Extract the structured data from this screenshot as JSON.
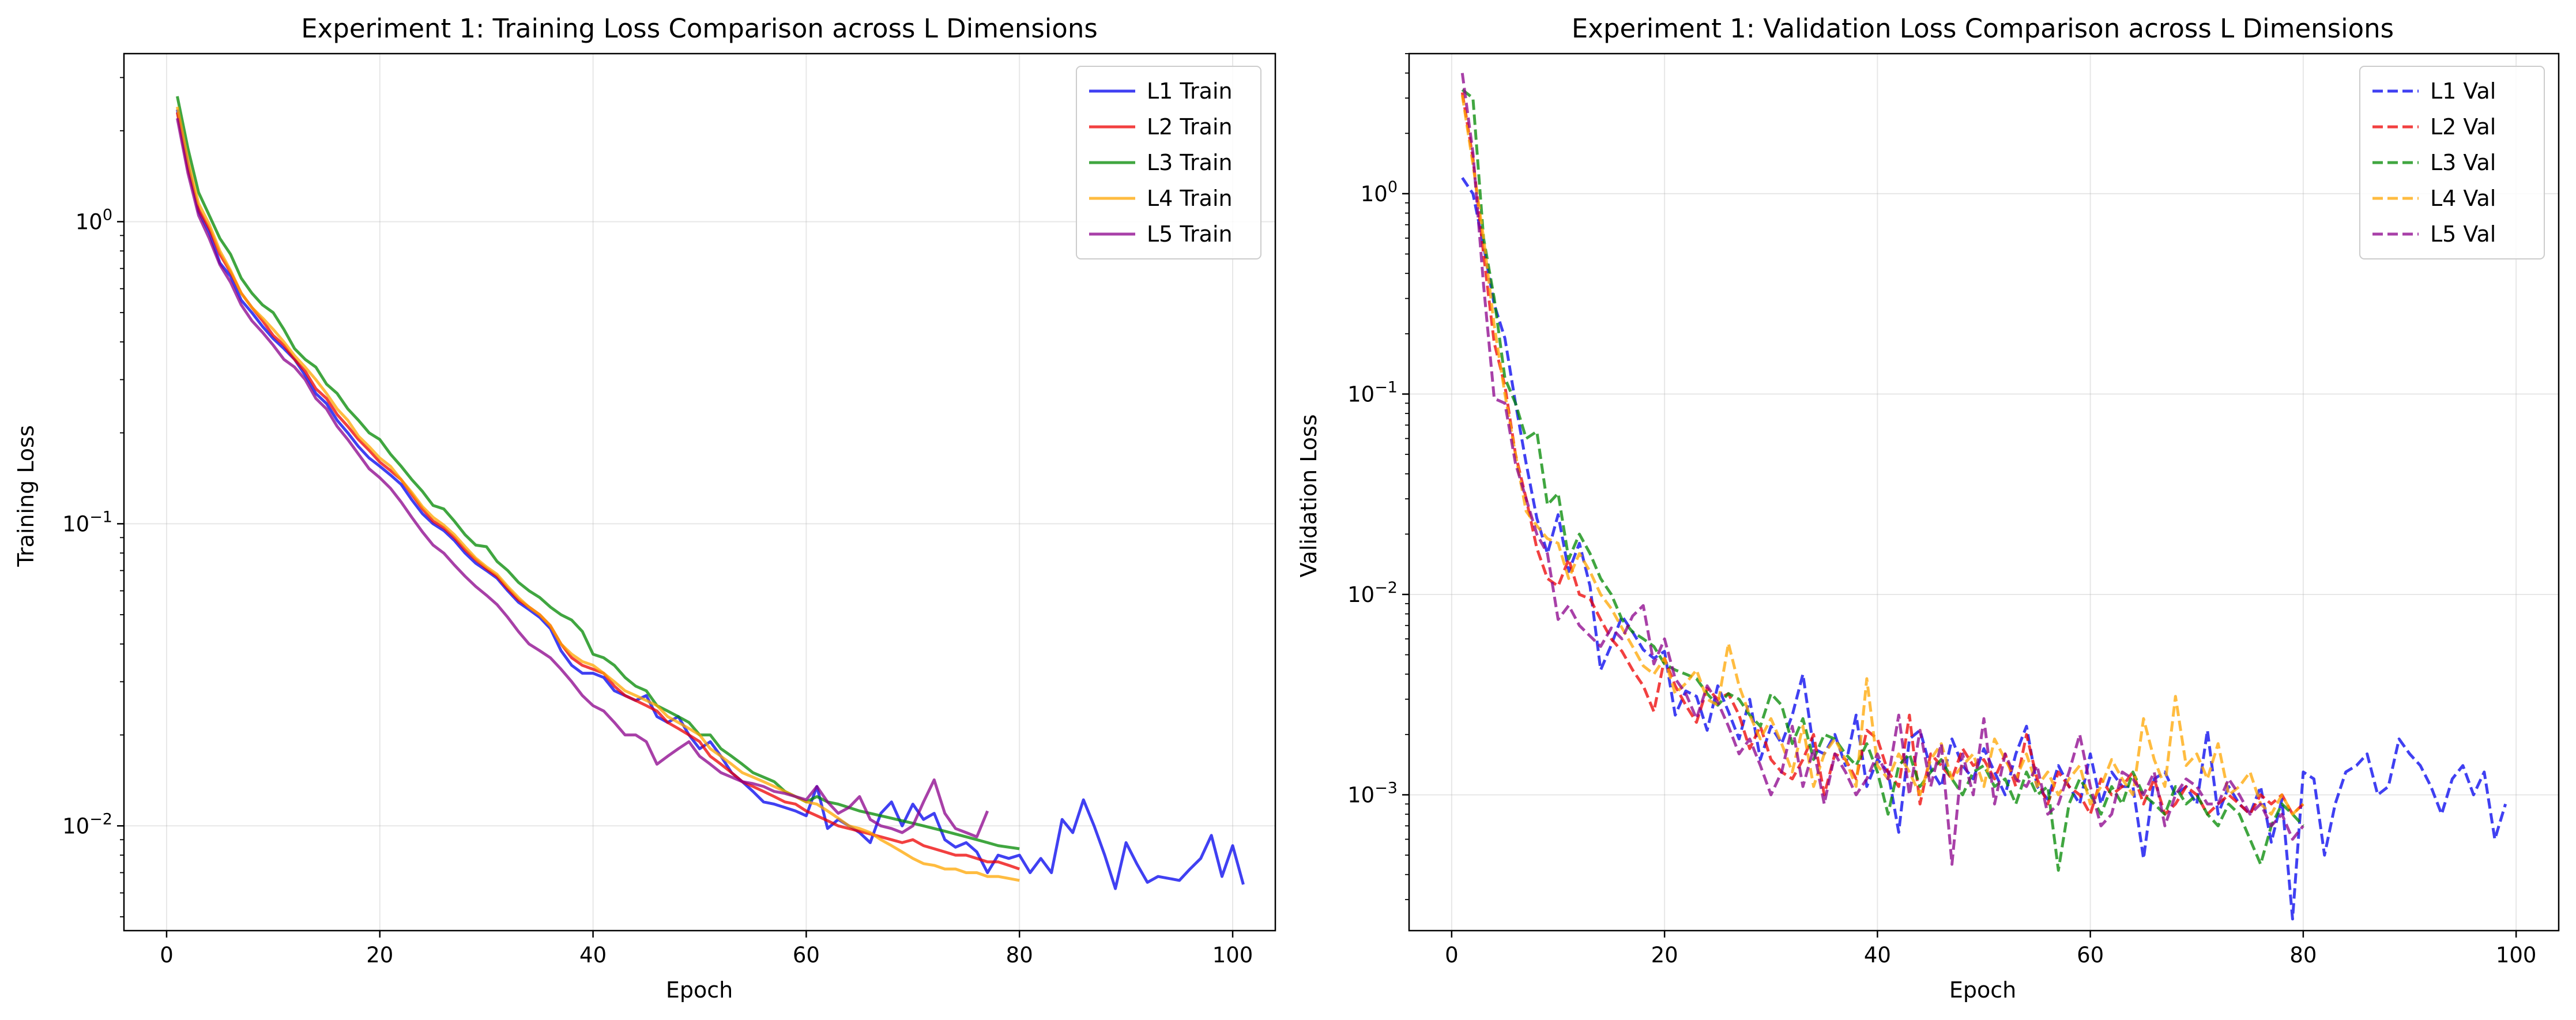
{
  "chart_data": [
    {
      "type": "line",
      "title": "Experiment 1: Training Loss Comparison across L Dimensions",
      "xlabel": "Epoch",
      "ylabel": "Training Loss",
      "y_scale": "log",
      "xlim": [
        -4,
        104
      ],
      "ylim": [
        0.0045,
        3.6
      ],
      "x_ticks": [
        0,
        20,
        40,
        60,
        80,
        100
      ],
      "y_tick_labels": [
        {
          "value": 1,
          "base": "10",
          "exp": "0"
        },
        {
          "value": 0.1,
          "base": "10",
          "exp": "−1"
        },
        {
          "value": 0.01,
          "base": "10",
          "exp": "−2"
        }
      ],
      "grid": true,
      "legend_position": "top-right",
      "line_style": "solid",
      "series": [
        {
          "name": "L1 Train",
          "color": "#0000ee",
          "x_start": 1,
          "values": [
            2.35,
            1.55,
            1.08,
            0.92,
            0.73,
            0.66,
            0.55,
            0.5,
            0.45,
            0.41,
            0.38,
            0.35,
            0.31,
            0.27,
            0.25,
            0.22,
            0.2,
            0.18,
            0.165,
            0.155,
            0.145,
            0.135,
            0.12,
            0.108,
            0.1,
            0.095,
            0.088,
            0.08,
            0.074,
            0.07,
            0.066,
            0.06,
            0.055,
            0.052,
            0.049,
            0.045,
            0.038,
            0.034,
            0.032,
            0.032,
            0.031,
            0.028,
            0.027,
            0.026,
            0.027,
            0.023,
            0.022,
            0.023,
            0.02,
            0.018,
            0.019,
            0.017,
            0.015,
            0.014,
            0.013,
            0.012,
            0.0118,
            0.0115,
            0.0112,
            0.0108,
            0.0135,
            0.0098,
            0.0105,
            0.01,
            0.0095,
            0.0088,
            0.011,
            0.012,
            0.01,
            0.0118,
            0.0105,
            0.011,
            0.009,
            0.0085,
            0.0088,
            0.0082,
            0.007,
            0.008,
            0.0078,
            0.008,
            0.007,
            0.0078,
            0.007,
            0.0105,
            0.0095,
            0.0122,
            0.01,
            0.008,
            0.0062,
            0.0088,
            0.0075,
            0.0065,
            0.0068,
            0.0067,
            0.0066,
            0.0072,
            0.0078,
            0.0093,
            0.0068,
            0.0086,
            0.0064
          ]
        },
        {
          "name": "L2 Train",
          "color": "#ee0000",
          "x_start": 1,
          "values": [
            2.3,
            1.5,
            1.1,
            0.95,
            0.78,
            0.68,
            0.58,
            0.52,
            0.47,
            0.42,
            0.39,
            0.35,
            0.32,
            0.28,
            0.26,
            0.23,
            0.21,
            0.19,
            0.175,
            0.16,
            0.15,
            0.14,
            0.125,
            0.112,
            0.102,
            0.097,
            0.09,
            0.082,
            0.076,
            0.071,
            0.067,
            0.061,
            0.056,
            0.053,
            0.05,
            0.046,
            0.04,
            0.036,
            0.034,
            0.033,
            0.032,
            0.029,
            0.027,
            0.026,
            0.025,
            0.024,
            0.022,
            0.021,
            0.02,
            0.019,
            0.017,
            0.016,
            0.015,
            0.014,
            0.0135,
            0.013,
            0.0125,
            0.012,
            0.0118,
            0.0112,
            0.0108,
            0.0104,
            0.01,
            0.0098,
            0.0096,
            0.0094,
            0.0092,
            0.009,
            0.0088,
            0.009,
            0.0086,
            0.0084,
            0.0082,
            0.008,
            0.008,
            0.0078,
            0.0076,
            0.0076,
            0.0074,
            0.0072
          ]
        },
        {
          "name": "L3 Train",
          "color": "#008800",
          "x_start": 1,
          "values": [
            2.6,
            1.75,
            1.25,
            1.05,
            0.88,
            0.78,
            0.65,
            0.58,
            0.53,
            0.5,
            0.44,
            0.38,
            0.35,
            0.33,
            0.29,
            0.27,
            0.24,
            0.22,
            0.2,
            0.19,
            0.17,
            0.155,
            0.14,
            0.128,
            0.115,
            0.112,
            0.102,
            0.092,
            0.085,
            0.084,
            0.075,
            0.07,
            0.064,
            0.06,
            0.057,
            0.053,
            0.05,
            0.048,
            0.044,
            0.037,
            0.036,
            0.034,
            0.031,
            0.029,
            0.028,
            0.025,
            0.024,
            0.023,
            0.022,
            0.02,
            0.02,
            0.018,
            0.017,
            0.016,
            0.015,
            0.0145,
            0.014,
            0.013,
            0.0125,
            0.012,
            0.0125,
            0.012,
            0.0118,
            0.0115,
            0.0112,
            0.011,
            0.0108,
            0.0106,
            0.0104,
            0.0102,
            0.01,
            0.0098,
            0.0096,
            0.0094,
            0.0092,
            0.009,
            0.0088,
            0.0086,
            0.0085,
            0.0084
          ]
        },
        {
          "name": "L4 Train",
          "color": "#ffa500",
          "x_start": 1,
          "values": [
            2.4,
            1.6,
            1.15,
            0.98,
            0.8,
            0.69,
            0.58,
            0.52,
            0.48,
            0.44,
            0.4,
            0.36,
            0.33,
            0.3,
            0.27,
            0.24,
            0.22,
            0.195,
            0.18,
            0.165,
            0.155,
            0.14,
            0.127,
            0.114,
            0.105,
            0.099,
            0.092,
            0.084,
            0.077,
            0.072,
            0.068,
            0.062,
            0.057,
            0.053,
            0.05,
            0.046,
            0.04,
            0.037,
            0.035,
            0.034,
            0.032,
            0.03,
            0.028,
            0.027,
            0.026,
            0.025,
            0.023,
            0.022,
            0.021,
            0.02,
            0.018,
            0.017,
            0.016,
            0.015,
            0.0145,
            0.014,
            0.0135,
            0.013,
            0.0125,
            0.012,
            0.0118,
            0.0112,
            0.0106,
            0.01,
            0.0098,
            0.0095,
            0.009,
            0.0086,
            0.0082,
            0.0078,
            0.0075,
            0.0074,
            0.0072,
            0.0072,
            0.007,
            0.007,
            0.0068,
            0.0068,
            0.0067,
            0.0066
          ]
        },
        {
          "name": "L5 Train",
          "color": "#8b008b",
          "x_start": 1,
          "values": [
            2.2,
            1.45,
            1.05,
            0.88,
            0.72,
            0.63,
            0.53,
            0.47,
            0.43,
            0.39,
            0.35,
            0.33,
            0.3,
            0.26,
            0.24,
            0.21,
            0.19,
            0.17,
            0.152,
            0.142,
            0.131,
            0.118,
            0.105,
            0.094,
            0.085,
            0.08,
            0.073,
            0.067,
            0.062,
            0.058,
            0.054,
            0.049,
            0.044,
            0.04,
            0.038,
            0.036,
            0.033,
            0.03,
            0.027,
            0.025,
            0.024,
            0.022,
            0.02,
            0.02,
            0.019,
            0.016,
            0.017,
            0.018,
            0.019,
            0.017,
            0.016,
            0.015,
            0.0145,
            0.014,
            0.0138,
            0.0135,
            0.013,
            0.0128,
            0.0125,
            0.0122,
            0.0135,
            0.012,
            0.011,
            0.0115,
            0.0125,
            0.0105,
            0.01,
            0.0098,
            0.0095,
            0.01,
            0.012,
            0.0142,
            0.011,
            0.0098,
            0.0095,
            0.0092,
            0.0112
          ]
        }
      ]
    },
    {
      "type": "line",
      "title": "Experiment 1: Validation Loss Comparison across L Dimensions",
      "xlabel": "Epoch",
      "ylabel": "Validation Loss",
      "y_scale": "log",
      "xlim": [
        -4,
        104
      ],
      "ylim": [
        0.00021,
        5.0
      ],
      "x_ticks": [
        0,
        20,
        40,
        60,
        80,
        100
      ],
      "y_tick_labels": [
        {
          "value": 1,
          "base": "10",
          "exp": "0"
        },
        {
          "value": 0.1,
          "base": "10",
          "exp": "−1"
        },
        {
          "value": 0.01,
          "base": "10",
          "exp": "−2"
        },
        {
          "value": 0.001,
          "base": "10",
          "exp": "−3"
        }
      ],
      "grid": true,
      "legend_position": "top-right",
      "line_style": "dashed",
      "series": [
        {
          "name": "L1 Val",
          "color": "#0000ee",
          "x_start": 1,
          "values": [
            1.2,
            1.0,
            0.55,
            0.28,
            0.19,
            0.09,
            0.045,
            0.024,
            0.016,
            0.025,
            0.013,
            0.018,
            0.011,
            0.0042,
            0.0056,
            0.0078,
            0.0065,
            0.0053,
            0.0048,
            0.0052,
            0.0025,
            0.0033,
            0.0031,
            0.0021,
            0.0035,
            0.0026,
            0.0019,
            0.003,
            0.0015,
            0.0022,
            0.0018,
            0.0025,
            0.004,
            0.0017,
            0.0016,
            0.002,
            0.0014,
            0.0025,
            0.0011,
            0.0015,
            0.0013,
            0.00065,
            0.0019,
            0.0021,
            0.00135,
            0.0011,
            0.0019,
            0.0014,
            0.0012,
            0.0017,
            0.0013,
            0.001,
            0.0016,
            0.0022,
            0.0011,
            0.00095,
            0.0014,
            0.0011,
            0.0009,
            0.0016,
            0.0009,
            0.0013,
            0.0011,
            0.0011,
            0.00048,
            0.0012,
            0.0013,
            0.001,
            0.0011,
            0.0009,
            0.0021,
            0.0008,
            0.0011,
            0.0009,
            0.0008,
            0.0011,
            0.00058,
            0.00095,
            0.00024,
            0.0013,
            0.0012,
            0.0005,
            0.0009,
            0.0013,
            0.0014,
            0.0016,
            0.001,
            0.0011,
            0.0019,
            0.0016,
            0.0014,
            0.0011,
            0.0008,
            0.0012,
            0.0014,
            0.001,
            0.0013,
            0.0006,
            0.0009
          ]
        },
        {
          "name": "L2 Val",
          "color": "#ee0000",
          "x_start": 1,
          "values": [
            3.2,
            1.5,
            0.5,
            0.18,
            0.11,
            0.05,
            0.03,
            0.017,
            0.012,
            0.011,
            0.015,
            0.01,
            0.0095,
            0.0075,
            0.006,
            0.0052,
            0.0042,
            0.0035,
            0.0026,
            0.0048,
            0.0035,
            0.0028,
            0.0023,
            0.0034,
            0.003,
            0.0032,
            0.0025,
            0.0017,
            0.0022,
            0.0015,
            0.0013,
            0.0012,
            0.0015,
            0.002,
            0.001,
            0.0016,
            0.0015,
            0.0012,
            0.0021,
            0.0019,
            0.0013,
            0.0011,
            0.0025,
            0.0009,
            0.0016,
            0.0014,
            0.0012,
            0.0017,
            0.0014,
            0.0015,
            0.0012,
            0.0016,
            0.0011,
            0.002,
            0.0012,
            0.0009,
            0.0013,
            0.0011,
            0.001,
            0.0008,
            0.0012,
            0.001,
            0.0011,
            0.0013,
            0.0009,
            0.0012,
            0.0008,
            0.0009,
            0.0011,
            0.001,
            0.0008,
            0.0009,
            0.001,
            0.0009,
            0.0008,
            0.001,
            0.0009,
            0.001,
            0.0008,
            0.0009
          ]
        },
        {
          "name": "L3 Val",
          "color": "#008800",
          "x_start": 1,
          "values": [
            3.3,
            3.0,
            0.6,
            0.3,
            0.12,
            0.09,
            0.06,
            0.065,
            0.028,
            0.032,
            0.015,
            0.02,
            0.016,
            0.012,
            0.01,
            0.0075,
            0.0065,
            0.006,
            0.0055,
            0.0045,
            0.0042,
            0.004,
            0.0038,
            0.0032,
            0.0028,
            0.0032,
            0.003,
            0.0025,
            0.0022,
            0.0032,
            0.0028,
            0.0018,
            0.0024,
            0.0015,
            0.002,
            0.0019,
            0.0016,
            0.0014,
            0.0018,
            0.0013,
            0.0008,
            0.0014,
            0.0016,
            0.0011,
            0.0013,
            0.0015,
            0.0012,
            0.001,
            0.0013,
            0.0014,
            0.0011,
            0.0012,
            0.0009,
            0.0013,
            0.001,
            0.0011,
            0.00042,
            0.0009,
            0.0012,
            0.001,
            0.0008,
            0.0011,
            0.0009,
            0.0013,
            0.001,
            0.0009,
            0.0008,
            0.0011,
            0.0009,
            0.001,
            0.0008,
            0.0007,
            0.0009,
            0.0008,
            0.0006,
            0.00045,
            0.0007,
            0.0009,
            0.0008,
            0.0007
          ]
        },
        {
          "name": "L4 Val",
          "color": "#ffa500",
          "x_start": 1,
          "values": [
            3.1,
            1.4,
            0.6,
            0.22,
            0.1,
            0.05,
            0.026,
            0.022,
            0.019,
            0.018,
            0.012,
            0.016,
            0.013,
            0.01,
            0.0085,
            0.0068,
            0.0055,
            0.0044,
            0.004,
            0.0048,
            0.0032,
            0.0036,
            0.0042,
            0.003,
            0.0028,
            0.0057,
            0.0035,
            0.0025,
            0.0019,
            0.0024,
            0.0018,
            0.0013,
            0.0022,
            0.0011,
            0.0016,
            0.0019,
            0.0015,
            0.0011,
            0.0038,
            0.0014,
            0.0012,
            0.0016,
            0.0013,
            0.001,
            0.0015,
            0.0018,
            0.0012,
            0.0014,
            0.0016,
            0.0011,
            0.0019,
            0.0015,
            0.0012,
            0.0016,
            0.0011,
            0.0013,
            0.001,
            0.0012,
            0.0014,
            0.0009,
            0.0011,
            0.0015,
            0.0012,
            0.001,
            0.0024,
            0.0015,
            0.0011,
            0.0031,
            0.0014,
            0.0016,
            0.0012,
            0.0018,
            0.001,
            0.0011,
            0.0013,
            0.0009,
            0.0008,
            0.001,
            0.0008,
            0.0009
          ]
        },
        {
          "name": "L5 Val",
          "color": "#8b008b",
          "x_start": 1,
          "values": [
            4.0,
            1.6,
            0.35,
            0.095,
            0.09,
            0.045,
            0.03,
            0.02,
            0.016,
            0.0075,
            0.0088,
            0.007,
            0.0062,
            0.0055,
            0.0068,
            0.006,
            0.0078,
            0.0088,
            0.0045,
            0.006,
            0.0038,
            0.0032,
            0.0024,
            0.0035,
            0.0029,
            0.0022,
            0.0016,
            0.0019,
            0.0014,
            0.001,
            0.0013,
            0.0022,
            0.0011,
            0.0017,
            0.0009,
            0.0016,
            0.0013,
            0.001,
            0.0012,
            0.0016,
            0.0012,
            0.0025,
            0.001,
            0.0021,
            0.0011,
            0.0018,
            0.00045,
            0.0016,
            0.001,
            0.0024,
            0.0009,
            0.0016,
            0.0012,
            0.0011,
            0.0014,
            0.0008,
            0.0009,
            0.0013,
            0.002,
            0.0011,
            0.0007,
            0.0008,
            0.0013,
            0.0012,
            0.001,
            0.0013,
            0.0007,
            0.001,
            0.0012,
            0.0011,
            0.0009,
            0.0009,
            0.0012,
            0.001,
            0.0008,
            0.0009,
            0.0007,
            0.0008,
            0.0006,
            0.0007
          ]
        }
      ]
    }
  ]
}
